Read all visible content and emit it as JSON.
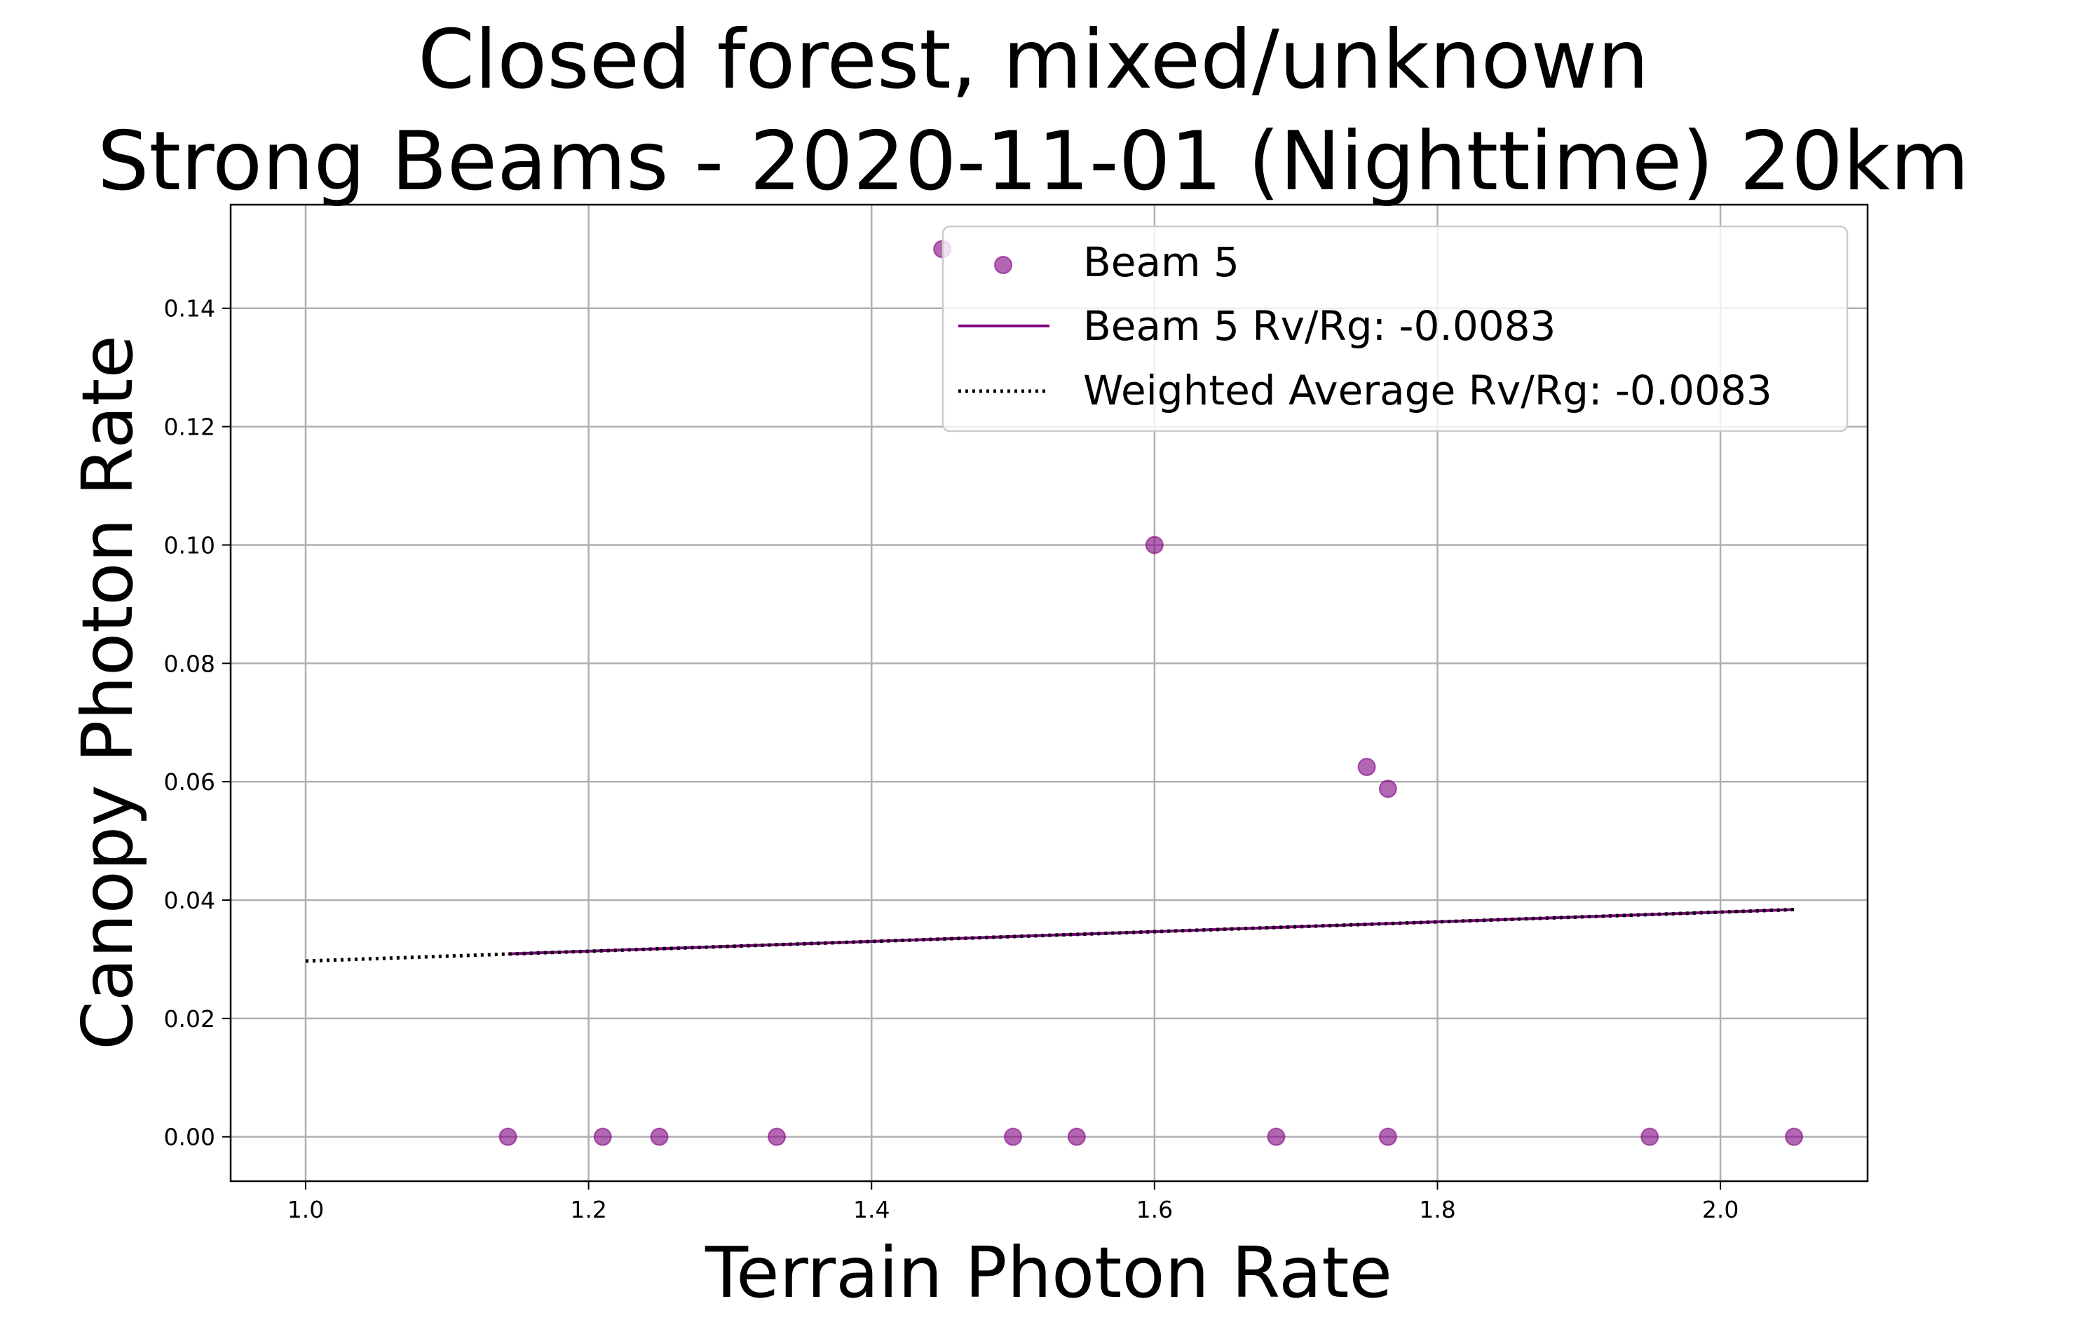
{
  "chart_data": {
    "type": "scatter",
    "title": [
      "Closed forest, mixed/unknown",
      "Strong Beams - 2020-11-01 (Nighttime) 20km"
    ],
    "xlabel": "Terrain Photon Rate",
    "ylabel": "Canopy Photon Rate",
    "xlim": [
      0.947,
      2.104
    ],
    "ylim": [
      -0.0075,
      0.1575
    ],
    "xticks": [
      1.0,
      1.2,
      1.4,
      1.6,
      1.8,
      2.0
    ],
    "xtick_labels": [
      "1.0",
      "1.2",
      "1.4",
      "1.6",
      "1.8",
      "2.0"
    ],
    "yticks": [
      0.0,
      0.02,
      0.04,
      0.06,
      0.08,
      0.1,
      0.12,
      0.14
    ],
    "ytick_labels": [
      "0.00",
      "0.02",
      "0.04",
      "0.06",
      "0.08",
      "0.10",
      "0.12",
      "0.14"
    ],
    "grid": true,
    "legend_position": "upper right",
    "series": [
      {
        "name": "Beam 5",
        "kind": "scatter",
        "color": "#800080",
        "points": [
          [
            1.143,
            0.0
          ],
          [
            1.21,
            0.0
          ],
          [
            1.25,
            0.0
          ],
          [
            1.333,
            0.0
          ],
          [
            1.5,
            0.0
          ],
          [
            1.545,
            0.0
          ],
          [
            1.686,
            0.0
          ],
          [
            1.765,
            0.0
          ],
          [
            1.95,
            0.0
          ],
          [
            2.052,
            0.0
          ],
          [
            1.6,
            0.1
          ],
          [
            1.75,
            0.0625
          ],
          [
            1.765,
            0.0588
          ],
          [
            1.45,
            0.15
          ]
        ]
      },
      {
        "name": "Beam 5 Rv/Rg: -0.0083",
        "kind": "line",
        "style": "solid",
        "color": "#800080",
        "points": [
          [
            1.143,
            0.0309
          ],
          [
            2.052,
            0.0384
          ]
        ]
      },
      {
        "name": "Weighted Average Rv/Rg: -0.0083",
        "kind": "line",
        "style": "dotted",
        "color": "#000000",
        "points": [
          [
            1.0,
            0.0297
          ],
          [
            2.052,
            0.0384
          ]
        ]
      }
    ]
  }
}
